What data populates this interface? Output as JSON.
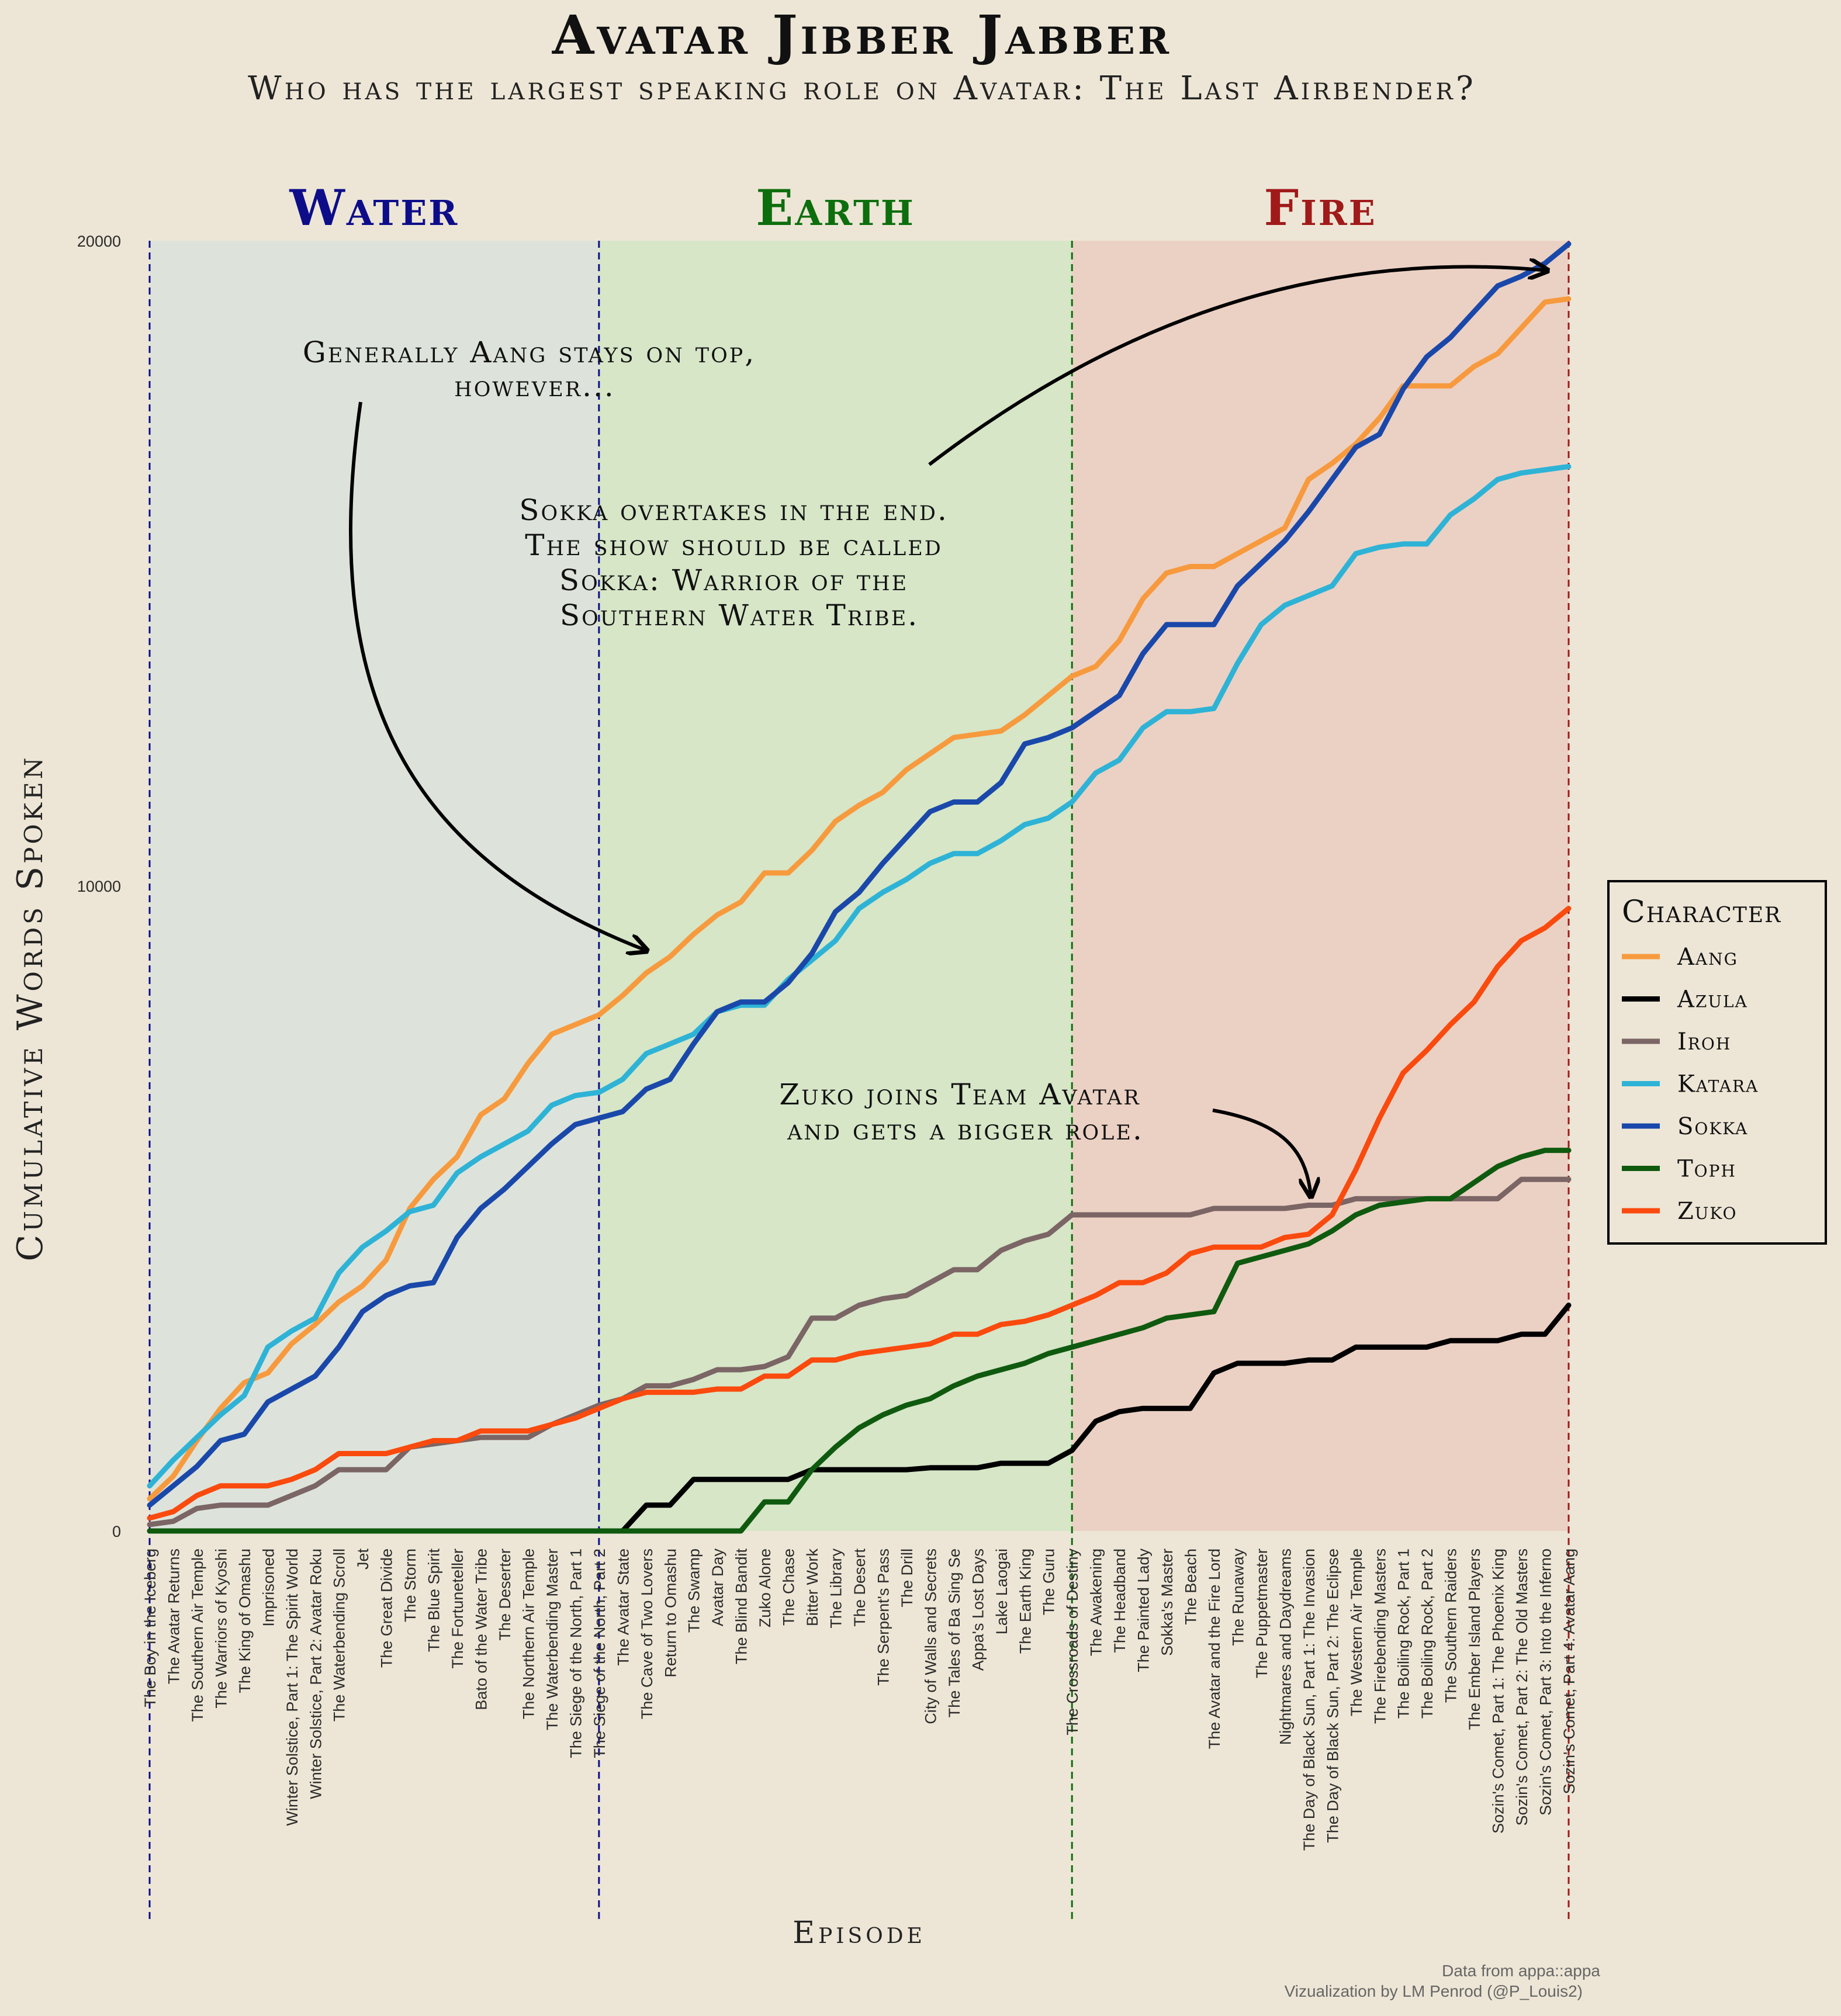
{
  "title": "Avatar Jibber Jabber",
  "subtitle": "Who has the largest speaking role on Avatar: The Last Airbender?",
  "seasons": [
    {
      "label": "Water",
      "color": "#0d0d8a",
      "fill": "#dde3da",
      "first": 0,
      "last": 19
    },
    {
      "label": "Earth",
      "color": "#0d6e0d",
      "fill": "#d6e6c7",
      "first": 19,
      "last": 39
    },
    {
      "label": "Fire",
      "color": "#a01a1a",
      "fill": "#ebd1c4",
      "first": 39,
      "last": 60
    }
  ],
  "annotations": {
    "aang": [
      "Generally Aang stays on top,",
      "however..."
    ],
    "sokka": [
      "Sokka overtakes in the end.",
      "The show should be called",
      "Sokka: Warrior of the",
      "Southern Water Tribe."
    ],
    "zuko": [
      "Zuko joins Team Avatar",
      "and gets a bigger role."
    ]
  },
  "caption": [
    "Data from appa::appa",
    "Vizualization by LM Penrod (@P_Louis2)"
  ],
  "chart_data": {
    "type": "line",
    "title": "Avatar Jibber Jabber",
    "subtitle": "Who has the largest speaking role on Avatar: The Last Airbender?",
    "xlabel": "Episode",
    "ylabel": "Cumulative Words Spoken",
    "ylim": [
      0,
      20000
    ],
    "yticks": [
      0,
      10000,
      20000
    ],
    "grid": false,
    "legend": {
      "title": "Character",
      "position": "right"
    },
    "categories": [
      "The Boy in the Iceberg",
      "The Avatar Returns",
      "The Southern Air Temple",
      "The Warriors of Kyoshi",
      "The King of Omashu",
      "Imprisoned",
      "Winter Solstice, Part 1: The Spirit World",
      "Winter Solstice, Part 2: Avatar Roku",
      "The Waterbending Scroll",
      "Jet",
      "The Great Divide",
      "The Storm",
      "The Blue Spirit",
      "The Fortuneteller",
      "Bato of the Water Tribe",
      "The Deserter",
      "The Northern Air Temple",
      "The Waterbending Master",
      "The Siege of the North, Part 1",
      "The Siege of the North, Part 2",
      "The Avatar State",
      "The Cave of Two Lovers",
      "Return to Omashu",
      "The Swamp",
      "Avatar Day",
      "The Blind Bandit",
      "Zuko Alone",
      "The Chase",
      "Bitter Work",
      "The Library",
      "The Desert",
      "The Serpent's Pass",
      "The Drill",
      "City of Walls and Secrets",
      "The Tales of Ba Sing Se",
      "Appa's Lost Days",
      "Lake Laogai",
      "The Earth King",
      "The Guru",
      "The Crossroads of Destiny",
      "The Awakening",
      "The Headband",
      "The Painted Lady",
      "Sokka's Master",
      "The Beach",
      "The Avatar and the Fire Lord",
      "The Runaway",
      "The Puppetmaster",
      "Nightmares and Daydreams",
      "The Day of Black Sun, Part 1: The Invasion",
      "The Day of Black Sun, Part 2: The Eclipse",
      "The Western Air Temple",
      "The Firebending Masters",
      "The Boiling Rock, Part 1",
      "The Boiling Rock, Part 2",
      "The Southern Raiders",
      "The Ember Island Players",
      "Sozin's Comet, Part 1: The Phoenix King",
      "Sozin's Comet, Part 2: The Old Masters",
      "Sozin's Comet, Part 3: Into the Inferno",
      "Sozin's Comet, Part 4: Avatar Aang"
    ],
    "series": [
      {
        "name": "Aang",
        "color": "#f79a3e",
        "values": [
          500,
          850,
          1400,
          1900,
          2300,
          2450,
          2900,
          3200,
          3550,
          3800,
          4200,
          5000,
          5450,
          5800,
          6450,
          6700,
          7250,
          7700,
          7850,
          8000,
          8300,
          8650,
          8900,
          9250,
          9550,
          9750,
          10200,
          10200,
          10550,
          11000,
          11250,
          11450,
          11800,
          12050,
          12300,
          12350,
          12400,
          12650,
          12950,
          13250,
          13400,
          13800,
          14450,
          14850,
          14950,
          14950,
          15150,
          15350,
          15550,
          16300,
          16550,
          16850,
          17250,
          17750,
          17750,
          17750,
          18050,
          18250,
          18650,
          19050,
          19100
        ]
      },
      {
        "name": "Azula",
        "color": "#000000",
        "values": [
          0,
          0,
          0,
          0,
          0,
          0,
          0,
          0,
          0,
          0,
          0,
          0,
          0,
          0,
          0,
          0,
          0,
          0,
          0,
          0,
          0,
          400,
          400,
          800,
          800,
          800,
          800,
          800,
          950,
          950,
          950,
          950,
          950,
          980,
          980,
          980,
          1050,
          1050,
          1050,
          1250,
          1700,
          1850,
          1900,
          1900,
          1900,
          2450,
          2600,
          2600,
          2600,
          2650,
          2650,
          2850,
          2850,
          2850,
          2850,
          2950,
          2950,
          2950,
          3050,
          3050,
          3500
        ]
      },
      {
        "name": "Iroh",
        "color": "#7b6565",
        "values": [
          100,
          150,
          350,
          400,
          400,
          400,
          550,
          700,
          950,
          950,
          950,
          1300,
          1350,
          1400,
          1450,
          1450,
          1450,
          1650,
          1800,
          1950,
          2050,
          2250,
          2250,
          2350,
          2500,
          2500,
          2550,
          2700,
          3300,
          3300,
          3500,
          3600,
          3650,
          3850,
          4050,
          4050,
          4350,
          4500,
          4600,
          4900,
          4900,
          4900,
          4900,
          4900,
          4900,
          5000,
          5000,
          5000,
          5000,
          5050,
          5050,
          5150,
          5150,
          5150,
          5150,
          5150,
          5150,
          5150,
          5450,
          5450,
          5450
        ]
      },
      {
        "name": "Katara",
        "color": "#2eb3d6",
        "values": [
          700,
          1100,
          1450,
          1800,
          2100,
          2850,
          3100,
          3300,
          4000,
          4400,
          4650,
          4950,
          5050,
          5550,
          5800,
          6000,
          6200,
          6600,
          6750,
          6800,
          7000,
          7400,
          7550,
          7700,
          8050,
          8150,
          8150,
          8550,
          8850,
          9150,
          9650,
          9900,
          10100,
          10350,
          10500,
          10500,
          10700,
          10950,
          11050,
          11300,
          11750,
          11950,
          12450,
          12700,
          12700,
          12750,
          13450,
          14050,
          14350,
          14500,
          14650,
          15150,
          15250,
          15300,
          15300,
          15750,
          16000,
          16300,
          16400,
          16450,
          16500
        ]
      },
      {
        "name": "Sokka",
        "color": "#1a48aa",
        "values": [
          400,
          700,
          1000,
          1400,
          1500,
          2000,
          2200,
          2400,
          2850,
          3400,
          3650,
          3800,
          3850,
          4550,
          5000,
          5300,
          5650,
          6000,
          6300,
          6400,
          6500,
          6850,
          7000,
          7550,
          8050,
          8200,
          8200,
          8500,
          8950,
          9600,
          9900,
          10350,
          10750,
          11150,
          11300,
          11300,
          11600,
          12200,
          12300,
          12450,
          12700,
          12950,
          13600,
          14050,
          14050,
          14050,
          14650,
          15000,
          15350,
          15800,
          16300,
          16800,
          17000,
          17700,
          18200,
          18500,
          18900,
          19300,
          19450,
          19650,
          19950
        ]
      },
      {
        "name": "Toph",
        "color": "#0f5a0f",
        "values": [
          0,
          0,
          0,
          0,
          0,
          0,
          0,
          0,
          0,
          0,
          0,
          0,
          0,
          0,
          0,
          0,
          0,
          0,
          0,
          0,
          0,
          0,
          0,
          0,
          0,
          0,
          450,
          450,
          950,
          1300,
          1600,
          1800,
          1950,
          2050,
          2250,
          2400,
          2500,
          2600,
          2750,
          2850,
          2950,
          3050,
          3150,
          3300,
          3350,
          3400,
          4150,
          4250,
          4350,
          4450,
          4650,
          4900,
          5050,
          5100,
          5150,
          5150,
          5400,
          5650,
          5800,
          5900,
          5900
        ]
      },
      {
        "name": "Zuko",
        "color": "#fa4a0e",
        "values": [
          200,
          300,
          550,
          700,
          700,
          700,
          800,
          950,
          1200,
          1200,
          1200,
          1300,
          1400,
          1400,
          1550,
          1550,
          1550,
          1650,
          1750,
          1900,
          2050,
          2150,
          2150,
          2150,
          2200,
          2200,
          2400,
          2400,
          2650,
          2650,
          2750,
          2800,
          2850,
          2900,
          3050,
          3050,
          3200,
          3250,
          3350,
          3500,
          3650,
          3850,
          3850,
          4000,
          4300,
          4400,
          4400,
          4400,
          4550,
          4600,
          4900,
          5600,
          6400,
          7100,
          7450,
          7850,
          8200,
          8750,
          9150,
          9350,
          9650
        ]
      }
    ]
  }
}
